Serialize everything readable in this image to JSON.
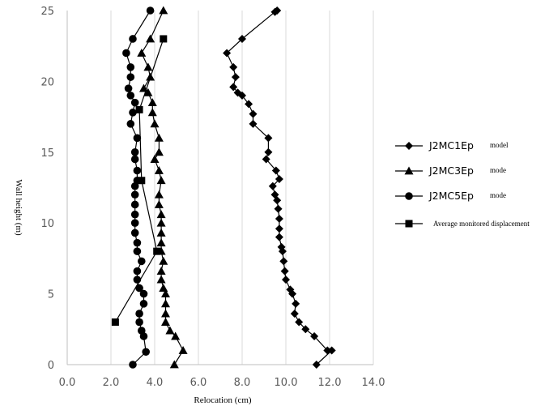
{
  "chart_data": {
    "type": "line",
    "xlabel": "Relocation (cm)",
    "ylabel": "Wall height (m)",
    "xlim": [
      0,
      14
    ],
    "ylim": [
      0,
      25
    ],
    "x_ticks": [
      "0.0",
      "2.0",
      "4.0",
      "6.0",
      "8.0",
      "10.0",
      "12.0",
      "14.0"
    ],
    "y_ticks": [
      "0",
      "5",
      "10",
      "15",
      "20",
      "25"
    ],
    "grid": "vertical",
    "legend_position": "right",
    "series": [
      {
        "name": "J2MC1Ep",
        "name_suffix": "model",
        "marker": "diamond",
        "points": [
          [
            11.4,
            0
          ],
          [
            12.1,
            1
          ],
          [
            11.9,
            1
          ],
          [
            11.3,
            2
          ],
          [
            10.9,
            2.5
          ],
          [
            10.6,
            3
          ],
          [
            10.4,
            3.6
          ],
          [
            10.45,
            4.3
          ],
          [
            10.3,
            5
          ],
          [
            10.2,
            5.3
          ],
          [
            10.0,
            6
          ],
          [
            9.95,
            6.6
          ],
          [
            9.9,
            7.3
          ],
          [
            9.85,
            8
          ],
          [
            9.8,
            8.3
          ],
          [
            9.7,
            9
          ],
          [
            9.7,
            9.6
          ],
          [
            9.7,
            10.3
          ],
          [
            9.65,
            11
          ],
          [
            9.6,
            11.6
          ],
          [
            9.5,
            12
          ],
          [
            9.4,
            12.6
          ],
          [
            9.7,
            13.1
          ],
          [
            9.55,
            13.7
          ],
          [
            9.1,
            14.5
          ],
          [
            9.2,
            15
          ],
          [
            9.2,
            16
          ],
          [
            8.5,
            17
          ],
          [
            8.5,
            17.7
          ],
          [
            8.3,
            18.4
          ],
          [
            8.0,
            19
          ],
          [
            7.8,
            19.2
          ],
          [
            7.6,
            19.6
          ],
          [
            7.7,
            20.3
          ],
          [
            7.6,
            21
          ],
          [
            7.3,
            22
          ],
          [
            8.0,
            23
          ],
          [
            9.5,
            24.9
          ],
          [
            9.6,
            25
          ]
        ]
      },
      {
        "name": "J2MC3Ep",
        "name_suffix": "mode",
        "marker": "triangle",
        "points": [
          [
            4.9,
            0
          ],
          [
            5.3,
            1
          ],
          [
            4.95,
            2
          ],
          [
            4.7,
            2.4
          ],
          [
            4.5,
            3
          ],
          [
            4.5,
            3.6
          ],
          [
            4.5,
            4.3
          ],
          [
            4.5,
            5
          ],
          [
            4.4,
            5.4
          ],
          [
            4.3,
            6
          ],
          [
            4.3,
            6.6
          ],
          [
            4.4,
            7.3
          ],
          [
            4.3,
            8
          ],
          [
            4.3,
            8.6
          ],
          [
            4.3,
            9.3
          ],
          [
            4.3,
            10
          ],
          [
            4.3,
            10.6
          ],
          [
            4.2,
            11.3
          ],
          [
            4.2,
            12
          ],
          [
            4.3,
            13
          ],
          [
            4.2,
            13.7
          ],
          [
            4.0,
            14.5
          ],
          [
            4.2,
            15
          ],
          [
            4.2,
            16
          ],
          [
            4.0,
            17
          ],
          [
            3.9,
            17.8
          ],
          [
            3.9,
            18.5
          ],
          [
            3.7,
            19.2
          ],
          [
            3.5,
            19.5
          ],
          [
            3.8,
            20.3
          ],
          [
            3.7,
            21
          ],
          [
            3.4,
            22
          ],
          [
            3.8,
            23
          ],
          [
            4.4,
            25
          ]
        ]
      },
      {
        "name": "J2MC5Ep",
        "name_suffix": "mode",
        "marker": "circle",
        "points": [
          [
            3.0,
            0
          ],
          [
            3.6,
            0.9
          ],
          [
            3.5,
            2
          ],
          [
            3.4,
            2.4
          ],
          [
            3.3,
            3
          ],
          [
            3.3,
            3.6
          ],
          [
            3.5,
            4.3
          ],
          [
            3.5,
            5
          ],
          [
            3.3,
            5.4
          ],
          [
            3.2,
            6
          ],
          [
            3.2,
            6.6
          ],
          [
            3.4,
            7.3
          ],
          [
            3.2,
            8
          ],
          [
            3.2,
            8.6
          ],
          [
            3.1,
            9.3
          ],
          [
            3.1,
            10
          ],
          [
            3.1,
            10.6
          ],
          [
            3.1,
            11.3
          ],
          [
            3.1,
            12
          ],
          [
            3.1,
            12.6
          ],
          [
            3.2,
            13
          ],
          [
            3.2,
            13.7
          ],
          [
            3.1,
            14.5
          ],
          [
            3.1,
            15
          ],
          [
            3.2,
            16
          ],
          [
            2.9,
            17
          ],
          [
            3.0,
            17.8
          ],
          [
            3.1,
            18.5
          ],
          [
            2.9,
            19
          ],
          [
            2.8,
            19.5
          ],
          [
            2.9,
            20.3
          ],
          [
            2.9,
            21
          ],
          [
            2.7,
            22
          ],
          [
            3.0,
            23
          ],
          [
            3.8,
            25
          ]
        ]
      },
      {
        "name": "Average monitored displacement",
        "name_suffix": "",
        "marker": "square",
        "points": [
          [
            2.2,
            3
          ],
          [
            4.1,
            8
          ],
          [
            3.4,
            13
          ],
          [
            3.3,
            18
          ],
          [
            4.4,
            23
          ]
        ]
      }
    ]
  }
}
